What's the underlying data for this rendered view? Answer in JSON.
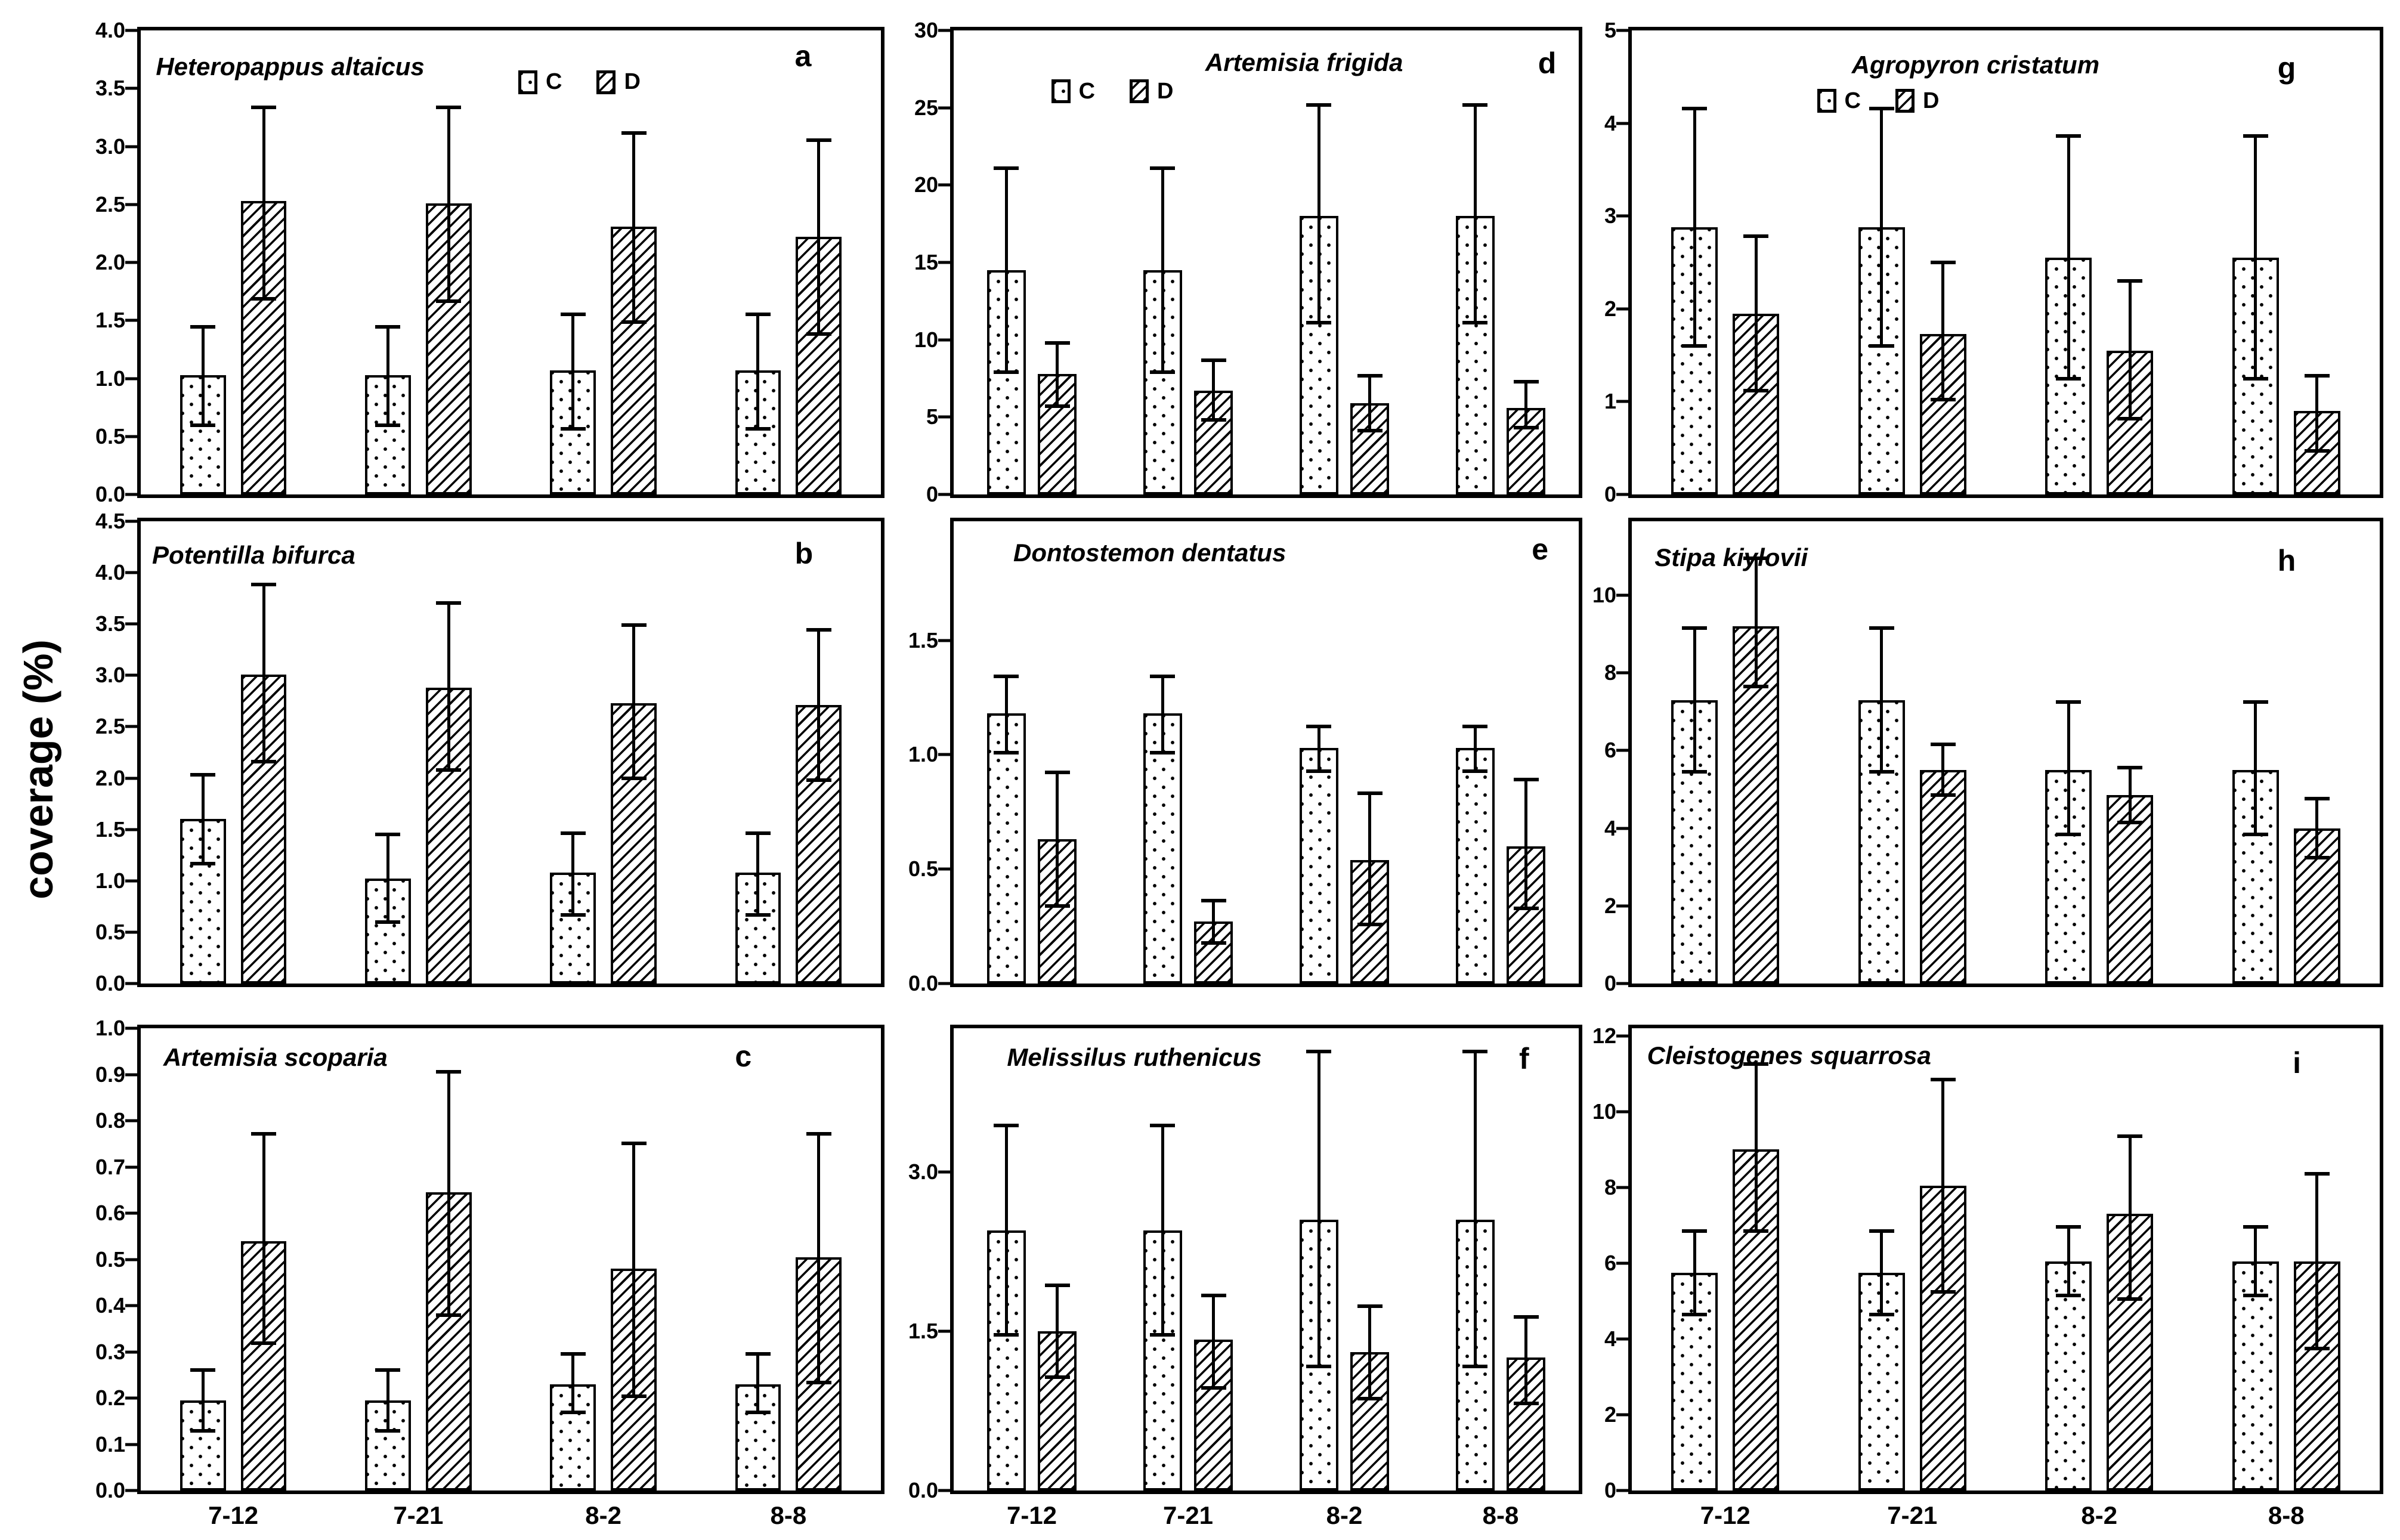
{
  "figure": {
    "ylabel": "coverage (%)",
    "background": "#ffffff",
    "ink": "#000000",
    "categories": [
      "7-12",
      "7-21",
      "8-2",
      "8-8"
    ],
    "legend_labels": [
      "C",
      "D"
    ]
  },
  "chart_data": [
    {
      "id": "a",
      "letter": "a",
      "title": "Heteropappus altaicus",
      "type": "bar",
      "grid": false,
      "categories": [
        "7-12",
        "7-21",
        "8-2",
        "8-8"
      ],
      "ylim": [
        0,
        4.0
      ],
      "yticks": [
        0,
        0.5,
        1,
        1.5,
        2,
        2.5,
        3,
        3.5,
        4
      ],
      "ytick_labels": [
        "0.0",
        "0.5",
        "1.0",
        "1.5",
        "2.0",
        "2.5",
        "3.0",
        "3.5",
        "4.0"
      ],
      "legend_position": "top-center",
      "show_x_labels": false,
      "series": [
        {
          "name": "C",
          "pattern": "speckle",
          "values": [
            1.03,
            1.03,
            1.07,
            1.07
          ],
          "err_low": [
            0.58,
            0.58,
            0.55,
            0.55
          ],
          "err_high": [
            1.46,
            1.46,
            1.57,
            1.57
          ]
        },
        {
          "name": "D",
          "pattern": "hatch",
          "values": [
            2.53,
            2.51,
            2.31,
            2.22
          ],
          "err_low": [
            1.67,
            1.65,
            1.47,
            1.37
          ],
          "err_high": [
            3.35,
            3.35,
            3.13,
            3.07
          ]
        }
      ]
    },
    {
      "id": "b",
      "letter": "b",
      "title": "Potentilla bifurca",
      "type": "bar",
      "grid": false,
      "categories": [
        "7-12",
        "7-21",
        "8-2",
        "8-8"
      ],
      "ylim": [
        0,
        4.5
      ],
      "yticks": [
        0,
        0.5,
        1,
        1.5,
        2,
        2.5,
        3,
        3.5,
        4,
        4.5
      ],
      "ytick_labels": [
        "0.0",
        "0.5",
        "1.0",
        "1.5",
        "2.0",
        "2.5",
        "3.0",
        "3.5",
        "4.0",
        "4.5"
      ],
      "legend_position": "none",
      "show_x_labels": false,
      "series": [
        {
          "name": "C",
          "pattern": "speckle",
          "values": [
            1.6,
            1.02,
            1.08,
            1.08
          ],
          "err_low": [
            1.15,
            0.58,
            0.65,
            0.65
          ],
          "err_high": [
            2.05,
            1.47,
            1.48,
            1.48
          ]
        },
        {
          "name": "D",
          "pattern": "hatch",
          "values": [
            3.01,
            2.88,
            2.73,
            2.71
          ],
          "err_low": [
            2.14,
            2.06,
            1.98,
            1.96
          ],
          "err_high": [
            3.9,
            3.72,
            3.51,
            3.46
          ]
        }
      ]
    },
    {
      "id": "c",
      "letter": "c",
      "title": "Artemisia scoparia",
      "type": "bar",
      "grid": false,
      "categories": [
        "7-12",
        "7-21",
        "8-2",
        "8-8"
      ],
      "ylim": [
        0,
        1.0
      ],
      "yticks": [
        0,
        0.1,
        0.2,
        0.3,
        0.4,
        0.5,
        0.6,
        0.7,
        0.8,
        0.9,
        1
      ],
      "ytick_labels": [
        "0.0",
        "0.1",
        "0.2",
        "0.3",
        "0.4",
        "0.5",
        "0.6",
        "0.7",
        "0.8",
        "0.9",
        "1.0"
      ],
      "legend_position": "none",
      "show_x_labels": true,
      "series": [
        {
          "name": "C",
          "pattern": "speckle",
          "values": [
            0.195,
            0.195,
            0.23,
            0.23
          ],
          "err_low": [
            0.125,
            0.125,
            0.165,
            0.165
          ],
          "err_high": [
            0.265,
            0.265,
            0.3,
            0.3
          ]
        },
        {
          "name": "D",
          "pattern": "hatch",
          "values": [
            0.54,
            0.645,
            0.48,
            0.505
          ],
          "err_low": [
            0.315,
            0.375,
            0.2,
            0.23
          ],
          "err_high": [
            0.775,
            0.91,
            0.755,
            0.775
          ]
        }
      ]
    },
    {
      "id": "d",
      "letter": "d",
      "title": "Artemisia frigida",
      "type": "bar",
      "grid": false,
      "categories": [
        "7-12",
        "7-21",
        "8-2",
        "8-8"
      ],
      "ylim": [
        0,
        30
      ],
      "yticks": [
        0,
        5,
        10,
        15,
        20,
        25,
        30
      ],
      "ytick_labels": [
        "0",
        "5",
        "10",
        "15",
        "20",
        "25",
        "30"
      ],
      "legend_position": "top-left",
      "show_x_labels": false,
      "series": [
        {
          "name": "C",
          "pattern": "speckle",
          "values": [
            14.5,
            14.5,
            18,
            18
          ],
          "err_low": [
            7.8,
            7.8,
            11,
            11
          ],
          "err_high": [
            21.2,
            21.2,
            25.3,
            25.3
          ]
        },
        {
          "name": "D",
          "pattern": "hatch",
          "values": [
            7.8,
            6.7,
            5.9,
            5.6
          ],
          "err_low": [
            5.6,
            4.7,
            4,
            4.2
          ],
          "err_high": [
            9.9,
            8.8,
            7.8,
            7.4
          ]
        }
      ]
    },
    {
      "id": "e",
      "letter": "e",
      "title": "Dontostemon dentatus",
      "type": "bar",
      "grid": false,
      "categories": [
        "7-12",
        "7-21",
        "8-2",
        "8-8"
      ],
      "ylim": [
        0,
        2.02
      ],
      "yticks": [
        0,
        0.5,
        1,
        1.5
      ],
      "ytick_labels": [
        "0.0",
        "0.5",
        "1.0",
        "1.5"
      ],
      "legend_position": "none",
      "show_x_labels": false,
      "series": [
        {
          "name": "C",
          "pattern": "speckle",
          "values": [
            1.18,
            1.18,
            1.03,
            1.03
          ],
          "err_low": [
            1,
            1,
            0.92,
            0.92
          ],
          "err_high": [
            1.35,
            1.35,
            1.13,
            1.13
          ]
        },
        {
          "name": "D",
          "pattern": "hatch",
          "values": [
            0.63,
            0.27,
            0.54,
            0.6
          ],
          "err_low": [
            0.33,
            0.17,
            0.25,
            0.32
          ],
          "err_high": [
            0.93,
            0.37,
            0.84,
            0.9
          ]
        }
      ]
    },
    {
      "id": "f",
      "letter": "f",
      "title": "Melissilus ruthenicus",
      "type": "bar",
      "grid": false,
      "categories": [
        "7-12",
        "7-21",
        "8-2",
        "8-8"
      ],
      "ylim": [
        0,
        4.35
      ],
      "yticks": [
        0,
        1.5,
        3
      ],
      "ytick_labels": [
        "0.0",
        "1.5",
        "3.0"
      ],
      "legend_position": "none",
      "show_x_labels": true,
      "series": [
        {
          "name": "C",
          "pattern": "speckle",
          "values": [
            2.45,
            2.45,
            2.55,
            2.55
          ],
          "err_low": [
            1.45,
            1.45,
            1.15,
            1.15
          ],
          "err_high": [
            3.45,
            3.45,
            4.15,
            4.15
          ]
        },
        {
          "name": "D",
          "pattern": "hatch",
          "values": [
            1.5,
            1.42,
            1.3,
            1.25
          ],
          "err_low": [
            1.05,
            0.95,
            0.85,
            0.8
          ],
          "err_high": [
            1.95,
            1.85,
            1.75,
            1.65
          ]
        }
      ]
    },
    {
      "id": "g",
      "letter": "g",
      "title": "Agropyron cristatum",
      "type": "bar",
      "grid": false,
      "categories": [
        "7-12",
        "7-21",
        "8-2",
        "8-8"
      ],
      "ylim": [
        0,
        5
      ],
      "yticks": [
        0,
        1,
        2,
        3,
        4,
        5
      ],
      "ytick_labels": [
        "0",
        "1",
        "2",
        "3",
        "4",
        "5"
      ],
      "legend_position": "below-title",
      "show_x_labels": false,
      "series": [
        {
          "name": "C",
          "pattern": "speckle",
          "values": [
            2.88,
            2.88,
            2.55,
            2.55
          ],
          "err_low": [
            1.58,
            1.58,
            1.23,
            1.23
          ],
          "err_high": [
            4.18,
            4.18,
            3.88,
            3.88
          ]
        },
        {
          "name": "D",
          "pattern": "hatch",
          "values": [
            1.95,
            1.73,
            1.55,
            0.9
          ],
          "err_low": [
            1.1,
            1,
            0.8,
            0.45
          ],
          "err_high": [
            2.8,
            2.52,
            2.32,
            1.3
          ]
        }
      ]
    },
    {
      "id": "h",
      "letter": "h",
      "title": "Stipa kiylovii",
      "type": "bar",
      "grid": false,
      "categories": [
        "7-12",
        "7-21",
        "8-2",
        "8-8"
      ],
      "ylim": [
        0,
        11.9
      ],
      "yticks": [
        0,
        2,
        4,
        6,
        8,
        10
      ],
      "ytick_labels": [
        "0",
        "2",
        "4",
        "6",
        "8",
        "10"
      ],
      "legend_position": "none",
      "show_x_labels": false,
      "series": [
        {
          "name": "C",
          "pattern": "speckle",
          "values": [
            7.3,
            7.3,
            5.5,
            5.5
          ],
          "err_low": [
            5.4,
            5.4,
            3.8,
            3.8
          ],
          "err_high": [
            9.2,
            9.2,
            7.3,
            7.3
          ]
        },
        {
          "name": "D",
          "pattern": "hatch",
          "values": [
            9.2,
            5.5,
            4.85,
            4
          ],
          "err_low": [
            7.6,
            4.8,
            4.1,
            3.2
          ],
          "err_high": [
            11,
            6.2,
            5.6,
            4.8
          ]
        }
      ]
    },
    {
      "id": "i",
      "letter": "i",
      "title": "Cleistogenes squarrosa",
      "type": "bar",
      "grid": false,
      "categories": [
        "7-12",
        "7-21",
        "8-2",
        "8-8"
      ],
      "ylim": [
        0,
        12.2
      ],
      "yticks": [
        0,
        2,
        4,
        6,
        8,
        10,
        12
      ],
      "ytick_labels": [
        "0",
        "2",
        "4",
        "6",
        "8",
        "10",
        "12"
      ],
      "legend_position": "none",
      "show_x_labels": true,
      "series": [
        {
          "name": "C",
          "pattern": "speckle",
          "values": [
            5.75,
            5.75,
            6.05,
            6.05
          ],
          "err_low": [
            4.6,
            4.6,
            5.1,
            5.1
          ],
          "err_high": [
            6.9,
            6.9,
            7,
            7
          ]
        },
        {
          "name": "D",
          "pattern": "hatch",
          "values": [
            9,
            8.05,
            7.3,
            6.05
          ],
          "err_low": [
            6.8,
            5.2,
            5,
            3.7
          ],
          "err_high": [
            11.3,
            10.9,
            9.4,
            8.4
          ]
        }
      ]
    }
  ]
}
